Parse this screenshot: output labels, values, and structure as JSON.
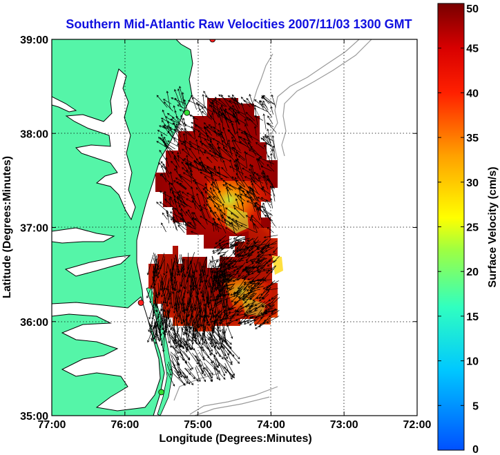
{
  "chart_data": {
    "type": "map",
    "title": "Southern Mid-Atlantic Raw Velocities 2007/11/03 1300 GMT",
    "xlabel": "Longitude (Degrees:Minutes)",
    "ylabel": "Latitude (Degrees:Minutes)",
    "x_range": [
      -77,
      -72
    ],
    "y_range": [
      35,
      39
    ],
    "x_ticks": [
      {
        "value": -77,
        "label": "77:00"
      },
      {
        "value": -76,
        "label": "76:00"
      },
      {
        "value": -75,
        "label": "75:00"
      },
      {
        "value": -74,
        "label": "74:00"
      },
      {
        "value": -73,
        "label": "73:00"
      },
      {
        "value": -72,
        "label": "72:00"
      }
    ],
    "y_ticks": [
      {
        "value": 35,
        "label": "35:00"
      },
      {
        "value": 36,
        "label": "36:00"
      },
      {
        "value": 37,
        "label": "37:00"
      },
      {
        "value": 38,
        "label": "38:00"
      },
      {
        "value": 39,
        "label": "39:00"
      }
    ],
    "grid": "dotted",
    "colorbar": {
      "label": "Surface Velocity (cm/s)",
      "range": [
        0,
        50
      ],
      "ticks": [
        {
          "value": 0,
          "label": "0"
        },
        {
          "value": 5,
          "label": "5"
        },
        {
          "value": 10,
          "label": "10"
        },
        {
          "value": 15,
          "label": "15"
        },
        {
          "value": 20,
          "label": "20"
        },
        {
          "value": 25,
          "label": "25"
        },
        {
          "value": 30,
          "label": "30"
        },
        {
          "value": 35,
          "label": "35"
        },
        {
          "value": 40,
          "label": "40"
        },
        {
          "value": 45,
          "label": "45"
        },
        {
          "value": 50,
          "label": "50"
        }
      ]
    },
    "colors": {
      "land": "#55f5a8",
      "water": "#ffffff",
      "coastline": "#000000",
      "bathymetry": "#999999",
      "title": "#1010e0",
      "vectors": "#000000"
    },
    "stations": [
      {
        "lon": -74.8,
        "lat": 39.0,
        "color": "#ff2020"
      },
      {
        "lon": -75.15,
        "lat": 38.22,
        "color": "#33dd33"
      },
      {
        "lon": -75.78,
        "lat": 36.2,
        "color": "#ff2020"
      },
      {
        "lon": -75.5,
        "lat": 35.25,
        "color": "#33dd33"
      }
    ]
  }
}
